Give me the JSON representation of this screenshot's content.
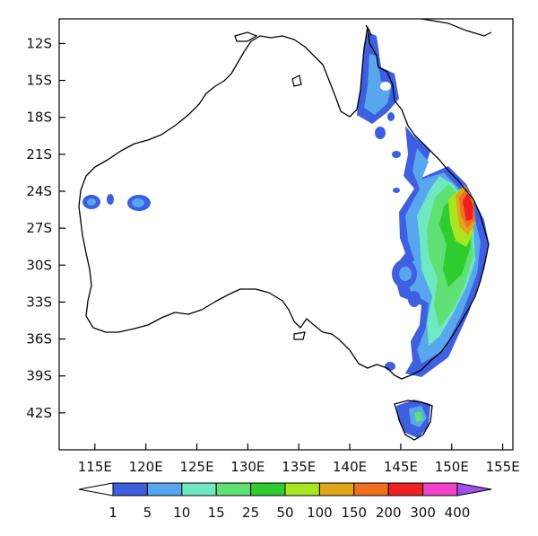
{
  "map": {
    "latitude_ticks": [
      "12S",
      "15S",
      "18S",
      "21S",
      "24S",
      "27S",
      "30S",
      "33S",
      "36S",
      "39S",
      "42S"
    ],
    "longitude_ticks": [
      "115E",
      "120E",
      "125E",
      "130E",
      "135E",
      "140E",
      "145E",
      "150E",
      "155E"
    ],
    "extent": {
      "lon": [
        111.5,
        156
      ],
      "lat": [
        -10,
        -45
      ]
    }
  },
  "colorbar": {
    "labels": [
      "1",
      "5",
      "10",
      "15",
      "25",
      "50",
      "100",
      "150",
      "200",
      "300",
      "400"
    ],
    "colors": [
      "#ffffff",
      "#3d5fe0",
      "#57a6ee",
      "#6fe8c4",
      "#5ee075",
      "#2ecc2e",
      "#a8e621",
      "#e0a618",
      "#f07020",
      "#f02020",
      "#f040c8",
      "#a050e8"
    ]
  }
}
